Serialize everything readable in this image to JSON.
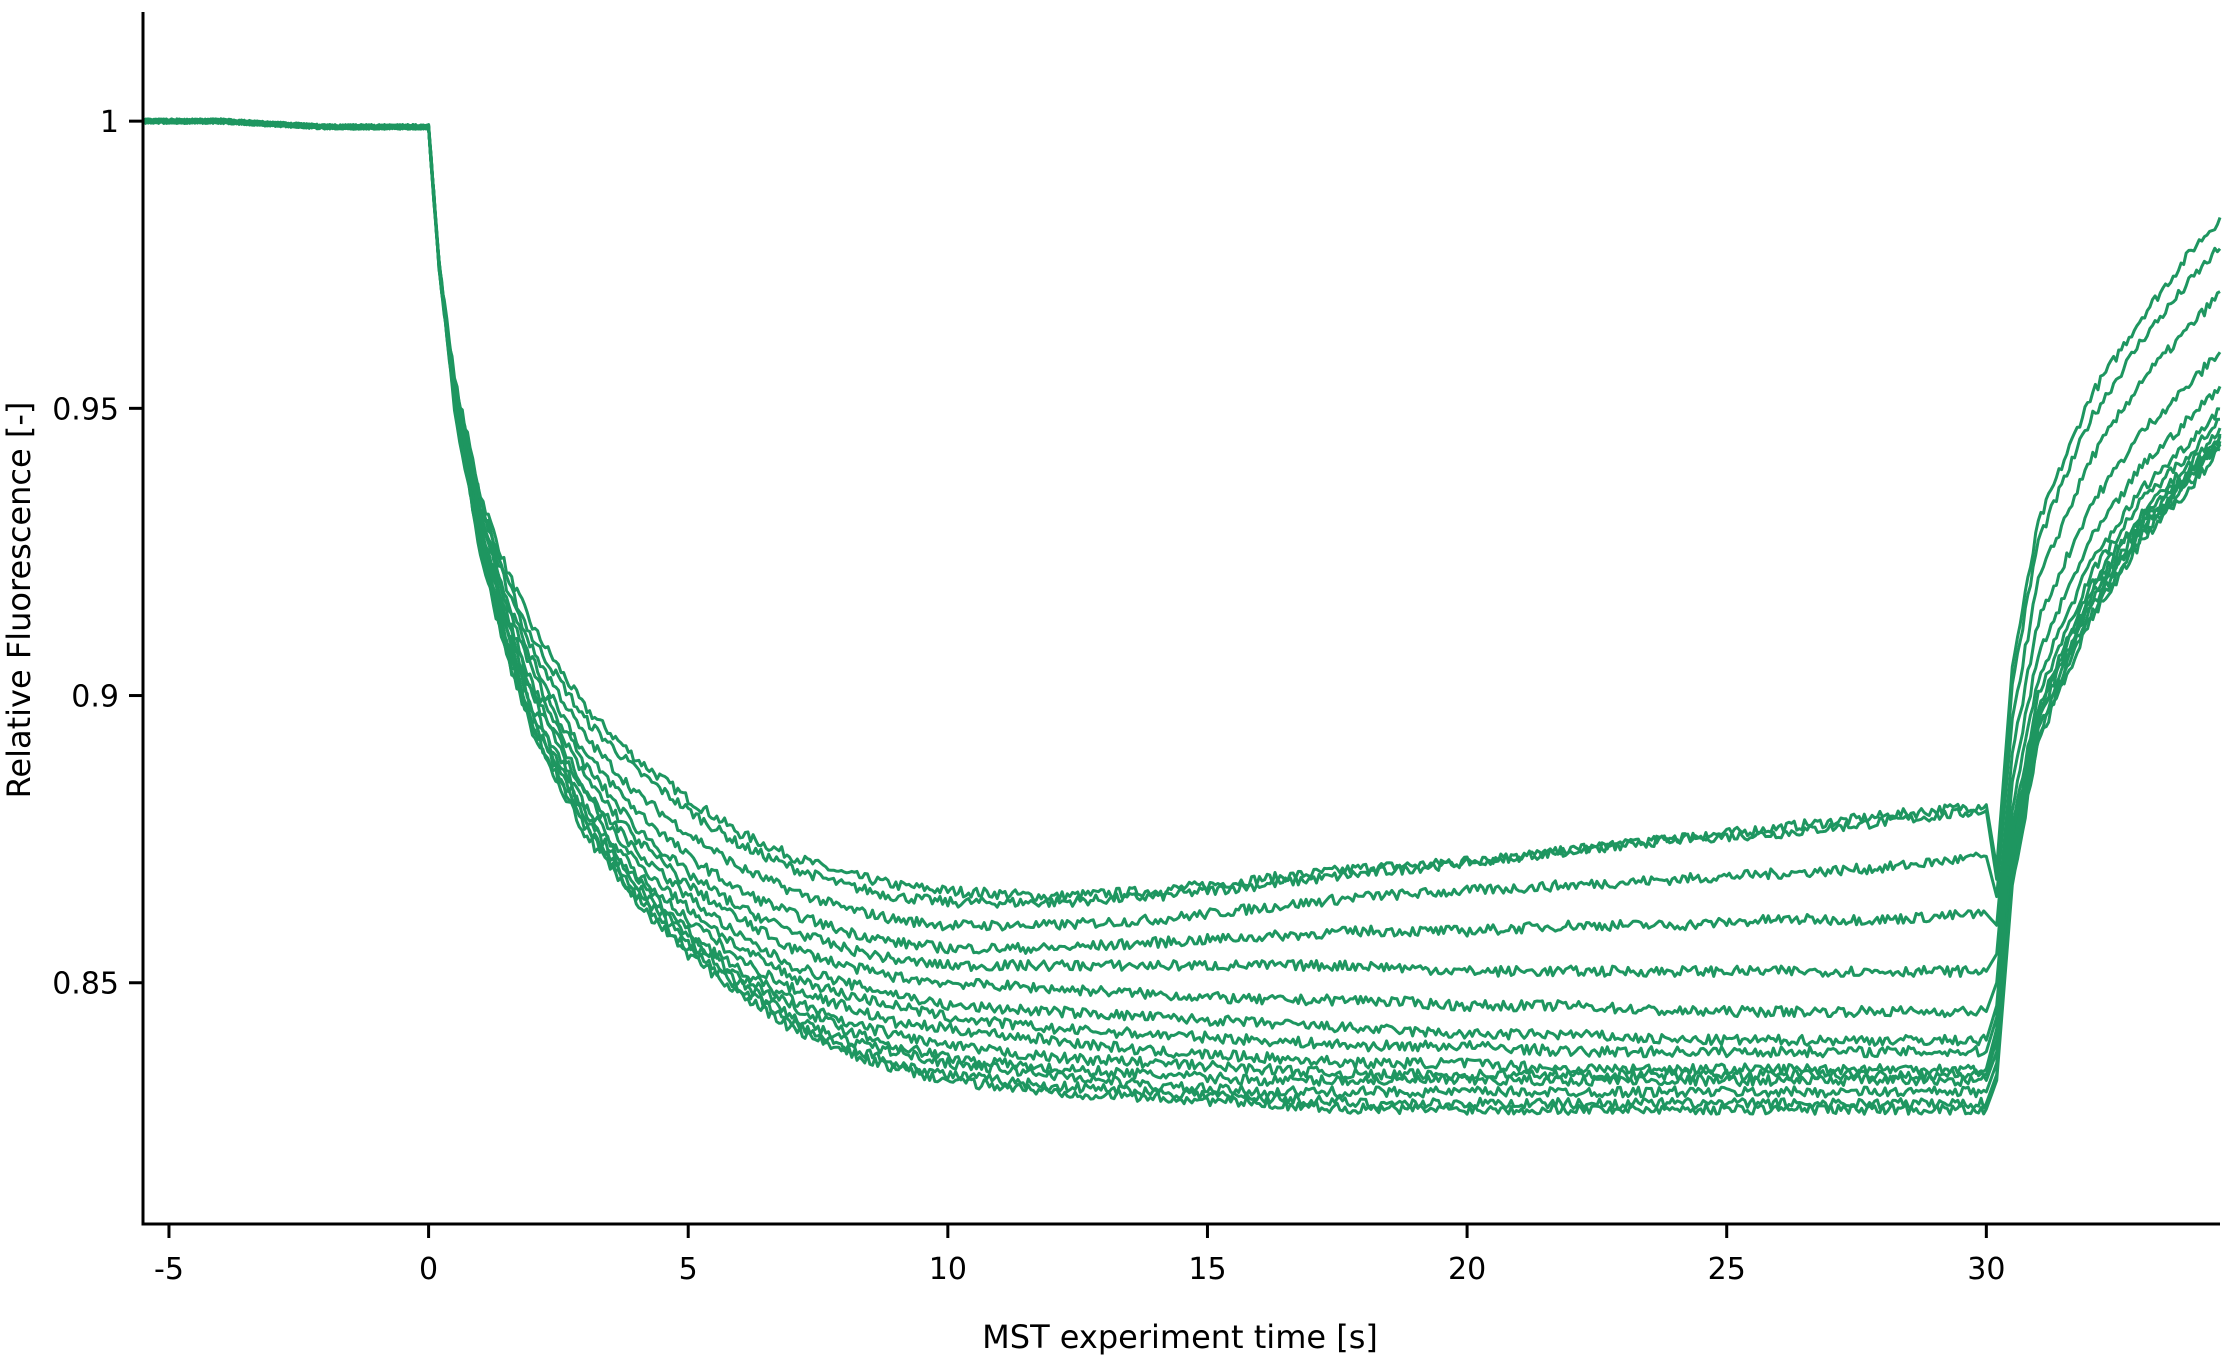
{
  "chart_data": {
    "type": "line",
    "title": "",
    "xlabel": "MST experiment time [s]",
    "ylabel": "Relative Fluorescence [-]",
    "xlim": [
      -5.5,
      34.5
    ],
    "ylim": [
      0.808,
      1.019
    ],
    "xticks": [
      -5,
      0,
      5,
      10,
      15,
      20,
      25,
      30
    ],
    "xtick_labels": [
      "-5",
      "0",
      "5",
      "10",
      "15",
      "20",
      "25",
      "30"
    ],
    "yticks": [
      0.85,
      0.9,
      0.95,
      1.0
    ],
    "ytick_labels": [
      "0.85",
      "0.9",
      "0.95",
      "1"
    ],
    "grid": false,
    "legend": "none",
    "line_color": "#1e9660",
    "x": [
      -5.5,
      -5,
      -4,
      -3,
      -2,
      -1,
      0,
      0.2,
      0.5,
      1,
      1.5,
      2,
      3,
      4,
      5,
      6,
      7,
      8,
      9,
      10,
      12,
      14,
      16,
      18,
      20,
      22,
      24,
      26,
      28,
      30,
      30.2,
      30.5,
      31,
      32,
      33,
      34,
      34.5
    ],
    "series": [
      {
        "values": [
          1.0,
          1.0,
          1.0,
          0.9995,
          0.999,
          0.999,
          0.999,
          0.975,
          0.955,
          0.935,
          0.922,
          0.912,
          0.898,
          0.889,
          0.882,
          0.876,
          0.872,
          0.869,
          0.867,
          0.866,
          0.865,
          0.866,
          0.868,
          0.87,
          0.871,
          0.873,
          0.875,
          0.877,
          0.879,
          0.881,
          0.87,
          0.905,
          0.93,
          0.952,
          0.966,
          0.978,
          0.983
        ]
      },
      {
        "values": [
          1.0,
          1.0,
          1.0,
          0.9995,
          0.999,
          0.999,
          0.999,
          0.975,
          0.955,
          0.934,
          0.92,
          0.91,
          0.896,
          0.887,
          0.88,
          0.874,
          0.87,
          0.867,
          0.865,
          0.864,
          0.864,
          0.865,
          0.867,
          0.869,
          0.871,
          0.873,
          0.875,
          0.876,
          0.878,
          0.88,
          0.868,
          0.902,
          0.927,
          0.948,
          0.962,
          0.973,
          0.978
        ]
      },
      {
        "values": [
          1.0,
          1.0,
          1.0,
          0.9995,
          0.999,
          0.999,
          0.999,
          0.975,
          0.954,
          0.933,
          0.919,
          0.908,
          0.893,
          0.883,
          0.876,
          0.87,
          0.866,
          0.863,
          0.861,
          0.86,
          0.86,
          0.861,
          0.863,
          0.865,
          0.866,
          0.867,
          0.868,
          0.869,
          0.87,
          0.872,
          0.865,
          0.896,
          0.92,
          0.941,
          0.955,
          0.965,
          0.97
        ]
      },
      {
        "values": [
          1.0,
          1.0,
          1.0,
          0.9995,
          0.999,
          0.999,
          0.999,
          0.975,
          0.954,
          0.932,
          0.917,
          0.906,
          0.89,
          0.88,
          0.872,
          0.866,
          0.862,
          0.859,
          0.857,
          0.856,
          0.856,
          0.857,
          0.858,
          0.859,
          0.859,
          0.86,
          0.86,
          0.861,
          0.861,
          0.862,
          0.86,
          0.89,
          0.913,
          0.933,
          0.946,
          0.955,
          0.96
        ]
      },
      {
        "values": [
          1.0,
          1.0,
          1.0,
          0.9995,
          0.999,
          0.999,
          0.999,
          0.975,
          0.953,
          0.931,
          0.916,
          0.904,
          0.888,
          0.877,
          0.869,
          0.863,
          0.859,
          0.856,
          0.854,
          0.853,
          0.853,
          0.853,
          0.853,
          0.853,
          0.852,
          0.852,
          0.852,
          0.852,
          0.852,
          0.852,
          0.855,
          0.885,
          0.907,
          0.927,
          0.94,
          0.949,
          0.954
        ]
      },
      {
        "values": [
          1.0,
          1.0,
          1.0,
          0.9995,
          0.999,
          0.999,
          0.999,
          0.975,
          0.953,
          0.93,
          0.914,
          0.902,
          0.886,
          0.875,
          0.867,
          0.861,
          0.856,
          0.853,
          0.851,
          0.85,
          0.849,
          0.848,
          0.847,
          0.847,
          0.846,
          0.846,
          0.845,
          0.845,
          0.845,
          0.845,
          0.85,
          0.88,
          0.903,
          0.923,
          0.936,
          0.945,
          0.95
        ]
      },
      {
        "values": [
          1.0,
          1.0,
          1.0,
          0.9995,
          0.999,
          0.999,
          0.999,
          0.975,
          0.953,
          0.929,
          0.913,
          0.901,
          0.884,
          0.873,
          0.865,
          0.858,
          0.853,
          0.85,
          0.848,
          0.846,
          0.845,
          0.844,
          0.843,
          0.842,
          0.841,
          0.841,
          0.84,
          0.84,
          0.84,
          0.84,
          0.846,
          0.877,
          0.9,
          0.921,
          0.934,
          0.943,
          0.948
        ]
      },
      {
        "values": [
          1.0,
          1.0,
          1.0,
          0.9995,
          0.999,
          0.999,
          0.999,
          0.975,
          0.952,
          0.928,
          0.912,
          0.9,
          0.883,
          0.871,
          0.863,
          0.856,
          0.851,
          0.848,
          0.846,
          0.844,
          0.842,
          0.841,
          0.84,
          0.839,
          0.839,
          0.838,
          0.838,
          0.838,
          0.838,
          0.838,
          0.844,
          0.875,
          0.898,
          0.919,
          0.932,
          0.941,
          0.946
        ]
      },
      {
        "values": [
          1.0,
          1.0,
          1.0,
          0.9995,
          0.999,
          0.999,
          0.999,
          0.975,
          0.952,
          0.927,
          0.911,
          0.898,
          0.881,
          0.869,
          0.861,
          0.854,
          0.849,
          0.846,
          0.843,
          0.842,
          0.84,
          0.838,
          0.837,
          0.836,
          0.836,
          0.835,
          0.835,
          0.835,
          0.835,
          0.835,
          0.842,
          0.873,
          0.897,
          0.918,
          0.931,
          0.94,
          0.945
        ]
      },
      {
        "values": [
          1.0,
          1.0,
          1.0,
          0.9995,
          0.999,
          0.999,
          0.999,
          0.975,
          0.952,
          0.927,
          0.91,
          0.897,
          0.88,
          0.868,
          0.859,
          0.852,
          0.847,
          0.843,
          0.841,
          0.839,
          0.837,
          0.836,
          0.835,
          0.834,
          0.834,
          0.834,
          0.834,
          0.834,
          0.834,
          0.834,
          0.84,
          0.872,
          0.896,
          0.917,
          0.93,
          0.94,
          0.945
        ]
      },
      {
        "values": [
          1.0,
          1.0,
          1.0,
          0.9995,
          0.999,
          0.999,
          0.999,
          0.975,
          0.951,
          0.926,
          0.909,
          0.896,
          0.879,
          0.867,
          0.858,
          0.851,
          0.846,
          0.842,
          0.839,
          0.837,
          0.835,
          0.834,
          0.833,
          0.833,
          0.833,
          0.833,
          0.833,
          0.833,
          0.833,
          0.833,
          0.838,
          0.87,
          0.895,
          0.916,
          0.929,
          0.939,
          0.944
        ]
      },
      {
        "values": [
          1.0,
          1.0,
          1.0,
          0.9995,
          0.999,
          0.999,
          0.999,
          0.975,
          0.951,
          0.926,
          0.908,
          0.895,
          0.878,
          0.866,
          0.857,
          0.85,
          0.844,
          0.84,
          0.838,
          0.836,
          0.834,
          0.832,
          0.831,
          0.831,
          0.831,
          0.831,
          0.831,
          0.831,
          0.831,
          0.831,
          0.836,
          0.869,
          0.894,
          0.915,
          0.929,
          0.939,
          0.944
        ]
      },
      {
        "values": [
          1.0,
          1.0,
          1.0,
          0.9995,
          0.999,
          0.999,
          0.999,
          0.975,
          0.951,
          0.925,
          0.907,
          0.894,
          0.877,
          0.865,
          0.856,
          0.849,
          0.843,
          0.839,
          0.836,
          0.834,
          0.832,
          0.831,
          0.83,
          0.829,
          0.829,
          0.829,
          0.829,
          0.829,
          0.829,
          0.829,
          0.834,
          0.868,
          0.893,
          0.914,
          0.928,
          0.938,
          0.944
        ]
      },
      {
        "values": [
          1.0,
          1.0,
          1.0,
          0.9995,
          0.999,
          0.999,
          0.999,
          0.975,
          0.95,
          0.925,
          0.907,
          0.894,
          0.876,
          0.864,
          0.855,
          0.848,
          0.842,
          0.838,
          0.835,
          0.833,
          0.831,
          0.83,
          0.829,
          0.828,
          0.828,
          0.828,
          0.828,
          0.828,
          0.828,
          0.828,
          0.833,
          0.867,
          0.892,
          0.913,
          0.927,
          0.937,
          0.943
        ]
      }
    ]
  }
}
